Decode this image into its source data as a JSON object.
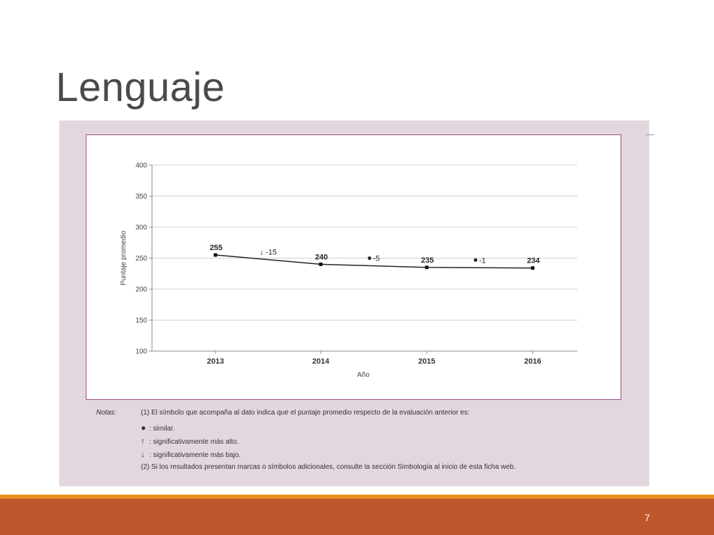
{
  "slide": {
    "title": "Lenguaje",
    "page_number": "7"
  },
  "colors": {
    "panel": "#e2d6df",
    "chart_border": "#9c5083",
    "footer_bar": "#bd582c",
    "footer_line": "#e8911c"
  },
  "notes": {
    "label": "Notas:",
    "line1": "(1) El símbolo que acompaña al dato indica que el puntaje promedio respecto de la evaluación anterior es:",
    "similar_symbol": "●",
    "similar": ": similar.",
    "higher_symbol": "↑",
    "higher": ": significativamente más alto.",
    "lower_symbol": "↓",
    "lower": ": significativamente más bajo.",
    "line2": "(2) Si los resultados presentan marcas o símbolos adicionales, consulte la sección Simbología al inicio de esta ficha web."
  },
  "chart_data": {
    "type": "line",
    "title": "",
    "xlabel": "Año",
    "ylabel": "Puntaje promedio",
    "categories": [
      "2013",
      "2014",
      "2015",
      "2016"
    ],
    "series": [
      {
        "values": [
          255,
          240,
          235,
          234
        ],
        "labels": [
          "255",
          "240",
          "235",
          "234"
        ]
      }
    ],
    "ylim": [
      100,
      400
    ],
    "yticks": [
      100,
      150,
      200,
      250,
      300,
      350,
      400
    ],
    "grid": true,
    "annotations": [
      {
        "between": [
          "2013",
          "2014"
        ],
        "symbol": "down-arrow",
        "text": "↓ -15"
      },
      {
        "between": [
          "2014",
          "2015"
        ],
        "symbol": "dot",
        "text": "-5"
      },
      {
        "between": [
          "2015",
          "2016"
        ],
        "symbol": "dot",
        "text": "-1"
      }
    ]
  }
}
